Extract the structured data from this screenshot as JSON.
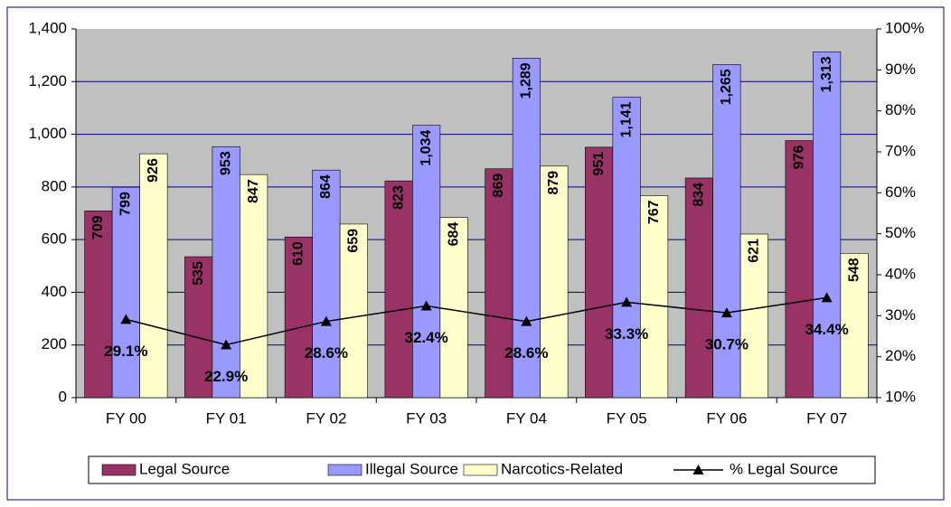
{
  "chart_data": {
    "type": "bar",
    "categories": [
      "FY 00",
      "FY 01",
      "FY 02",
      "FY 03",
      "FY 04",
      "FY 05",
      "FY 06",
      "FY 07"
    ],
    "series": [
      {
        "name": "Legal Source",
        "color": "#993366",
        "values": [
          709,
          535,
          610,
          823,
          869,
          951,
          834,
          976
        ]
      },
      {
        "name": "Illegal Source",
        "color": "#9999ff",
        "values": [
          799,
          953,
          864,
          1034,
          1289,
          1141,
          1265,
          1313
        ],
        "value_labels": [
          "799",
          "953",
          "864",
          "1,034",
          "1,289",
          "1,141",
          "1,265",
          "1,313"
        ]
      },
      {
        "name": "Narcotics-Related",
        "color": "#ffffcc",
        "values": [
          926,
          847,
          659,
          684,
          879,
          767,
          621,
          548
        ]
      },
      {
        "name": "% Legal Source",
        "color": "#000000",
        "type": "line",
        "axis": "y2",
        "values": [
          29.1,
          22.9,
          28.6,
          32.4,
          28.6,
          33.3,
          30.7,
          34.4
        ],
        "value_labels": [
          "29.1%",
          "22.9%",
          "28.6%",
          "32.4%",
          "28.6%",
          "33.3%",
          "30.7%",
          "34.4%"
        ]
      }
    ],
    "ylim": [
      0,
      1400
    ],
    "yticks": [
      0,
      200,
      400,
      600,
      800,
      {
        "value": 1000,
        "label": "1,000"
      },
      {
        "value": 1200,
        "label": "1,200"
      },
      {
        "value": 1400,
        "label": "1,400"
      }
    ],
    "y2lim": [
      10,
      100
    ],
    "y2ticks": [
      {
        "value": 10,
        "label": "10%"
      },
      {
        "value": 20,
        "label": "20%"
      },
      {
        "value": 30,
        "label": "30%"
      },
      {
        "value": 40,
        "label": "40%"
      },
      {
        "value": 50,
        "label": "50%"
      },
      {
        "value": 60,
        "label": "60%"
      },
      {
        "value": 70,
        "label": "70%"
      },
      {
        "value": 80,
        "label": "80%"
      },
      {
        "value": 90,
        "label": "90%"
      },
      {
        "value": 100,
        "label": "100%"
      }
    ],
    "grid": true,
    "legend": "bottom"
  }
}
